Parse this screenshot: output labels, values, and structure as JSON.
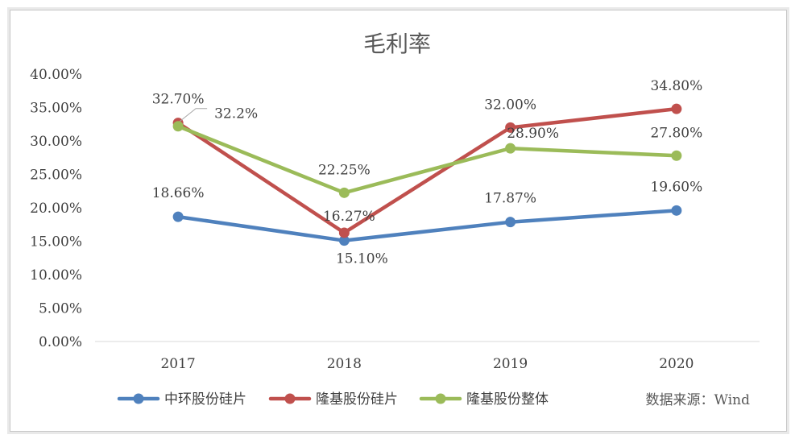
{
  "chart_data": {
    "type": "line",
    "title": "毛利率",
    "categories": [
      "2017",
      "2018",
      "2019",
      "2020"
    ],
    "ylim": [
      0,
      40
    ],
    "yticks": [
      "0.00%",
      "5.00%",
      "10.00%",
      "15.00%",
      "20.00%",
      "25.00%",
      "30.00%",
      "35.00%",
      "40.00%"
    ],
    "grid": false,
    "legend_position": "bottom",
    "source_note": "数据来源：Wind",
    "series": [
      {
        "name": "中环股份硅片",
        "color": "#4f81bd",
        "values": [
          18.66,
          15.1,
          17.87,
          19.6
        ],
        "labels": [
          "18.66%",
          "15.10%",
          "17.87%",
          "19.60%"
        ]
      },
      {
        "name": "隆基股份硅片",
        "color": "#c0504d",
        "values": [
          32.7,
          16.27,
          32.0,
          34.8
        ],
        "labels": [
          "32.70%",
          "16.27%",
          "32.00%",
          "34.80%"
        ]
      },
      {
        "name": "隆基股份整体",
        "color": "#9bbb59",
        "values": [
          32.2,
          22.25,
          28.9,
          27.8
        ],
        "labels": [
          "32.2%",
          "22.25%",
          "28.90%",
          "27.80%"
        ]
      }
    ]
  }
}
